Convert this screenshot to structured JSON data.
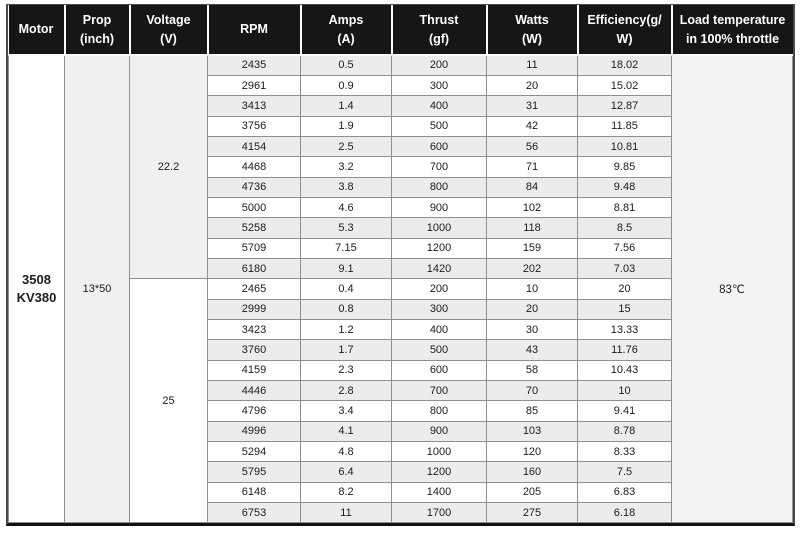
{
  "table": {
    "columns": [
      "Motor",
      "Prop\n(inch)",
      "Voltage\n(V)",
      "RPM",
      "Amps\n(A)",
      "Thrust\n(gf)",
      "Watts\n(W)",
      "Efficiency(g/\nW)",
      "Load temperature\nin 100% throttle"
    ],
    "motor": "3508\nKV380",
    "prop": "13*50",
    "load_temperature": "83℃",
    "groups": [
      {
        "voltage": "22.2",
        "rows": [
          [
            "2435",
            "0.5",
            "200",
            "11",
            "18.02"
          ],
          [
            "2961",
            "0.9",
            "300",
            "20",
            "15.02"
          ],
          [
            "3413",
            "1.4",
            "400",
            "31",
            "12.87"
          ],
          [
            "3756",
            "1.9",
            "500",
            "42",
            "11.85"
          ],
          [
            "4154",
            "2.5",
            "600",
            "56",
            "10.81"
          ],
          [
            "4468",
            "3.2",
            "700",
            "71",
            "9.85"
          ],
          [
            "4736",
            "3.8",
            "800",
            "84",
            "9.48"
          ],
          [
            "5000",
            "4.6",
            "900",
            "102",
            "8.81"
          ],
          [
            "5258",
            "5.3",
            "1000",
            "118",
            "8.5"
          ],
          [
            "5709",
            "7.15",
            "1200",
            "159",
            "7.56"
          ],
          [
            "6180",
            "9.1",
            "1420",
            "202",
            "7.03"
          ]
        ]
      },
      {
        "voltage": "25",
        "rows": [
          [
            "2465",
            "0.4",
            "200",
            "10",
            "20"
          ],
          [
            "2999",
            "0.8",
            "300",
            "20",
            "15"
          ],
          [
            "3423",
            "1.2",
            "400",
            "30",
            "13.33"
          ],
          [
            "3760",
            "1.7",
            "500",
            "43",
            "11.76"
          ],
          [
            "4159",
            "2.3",
            "600",
            "58",
            "10.43"
          ],
          [
            "4446",
            "2.8",
            "700",
            "70",
            "10"
          ],
          [
            "4796",
            "3.4",
            "800",
            "85",
            "9.41"
          ],
          [
            "4996",
            "4.1",
            "900",
            "103",
            "8.78"
          ],
          [
            "5294",
            "4.8",
            "1000",
            "120",
            "8.33"
          ],
          [
            "5795",
            "6.4",
            "1200",
            "160",
            "7.5"
          ],
          [
            "6148",
            "8.2",
            "1400",
            "205",
            "6.83"
          ],
          [
            "6753",
            "11",
            "1700",
            "275",
            "6.18"
          ]
        ]
      }
    ]
  }
}
